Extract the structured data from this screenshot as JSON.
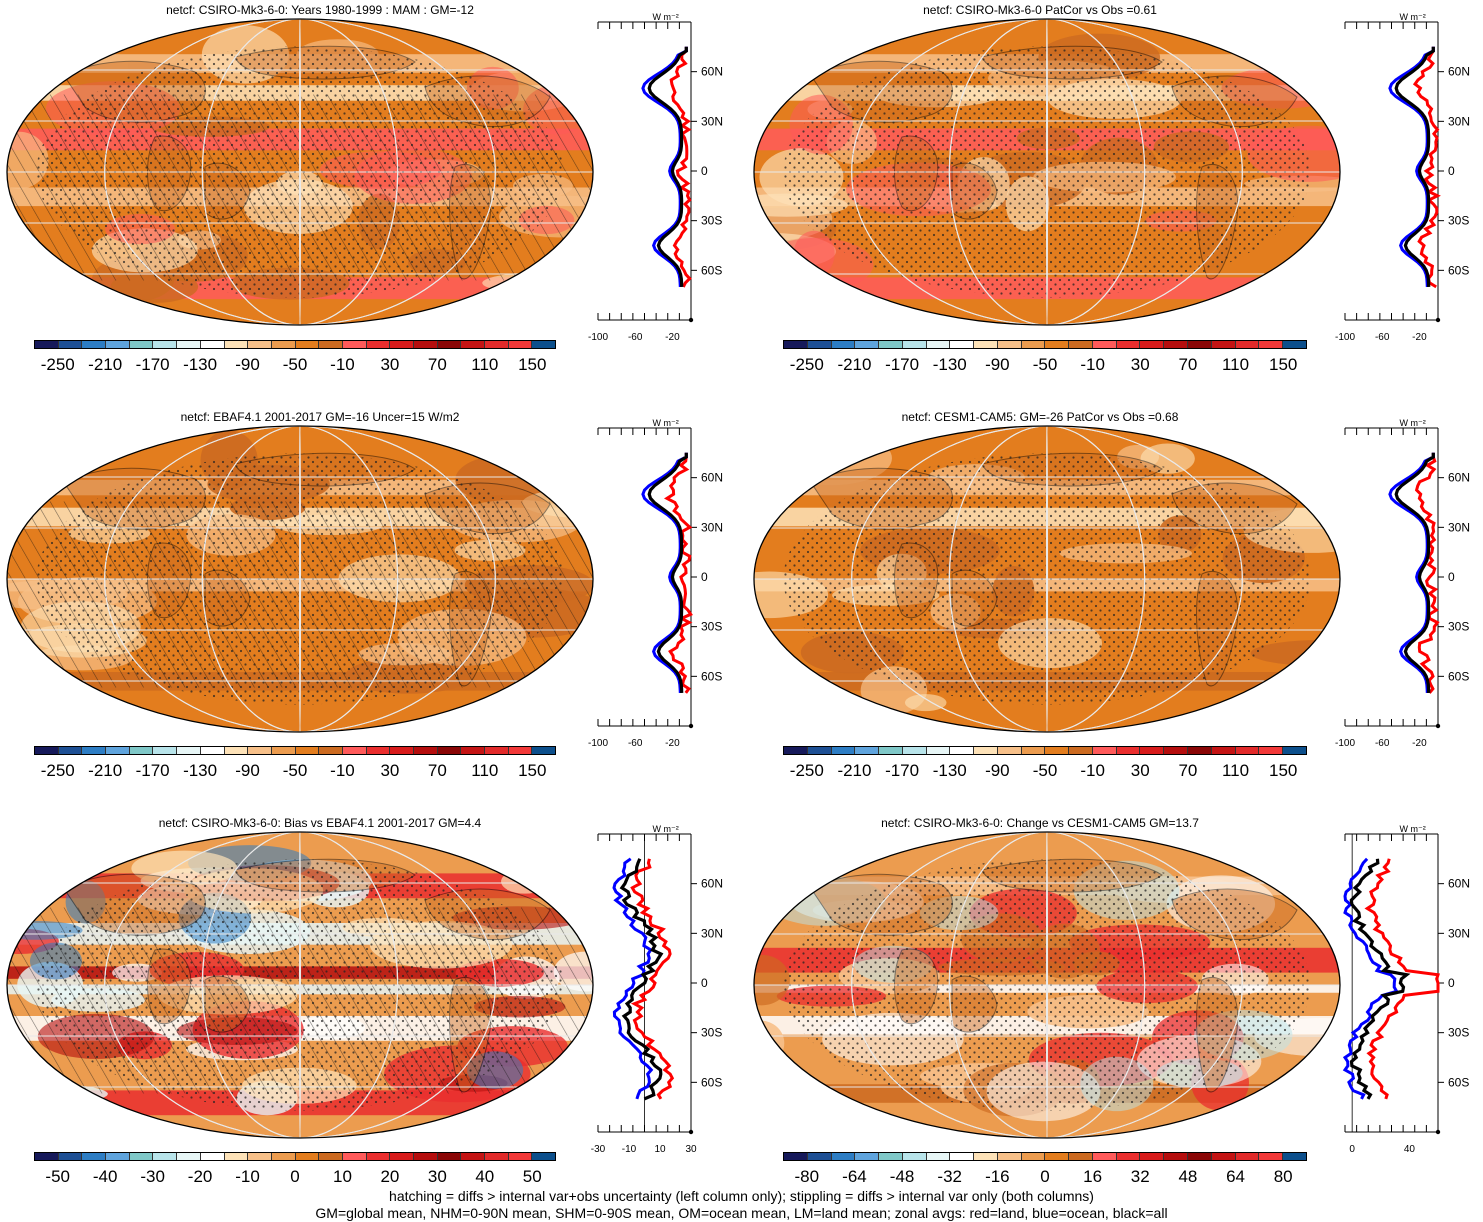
{
  "panels": [
    {
      "id": "p1",
      "title": "netcf: CSIRO-Mk3-6-0: Years 1980-1999 : MAM : GM=-12",
      "map_style": "model",
      "hatching": true,
      "colorbar": {
        "labels": [
          "-250",
          "-210",
          "-170",
          "-130",
          "-90",
          "-50",
          "-10",
          "30",
          "70",
          "110",
          "150"
        ]
      },
      "zonal": {
        "xticks": [
          "-100",
          "-60",
          "-20"
        ],
        "unit": "W m⁻²",
        "ylabels": [
          "60N",
          "30N",
          "0",
          "30S",
          "60S"
        ]
      }
    },
    {
      "id": "p2",
      "title": "netcf: CSIRO-Mk3-6-0 PatCor vs Obs =0.61",
      "map_style": "model",
      "hatching": false,
      "colorbar": {
        "labels": [
          "-250",
          "-210",
          "-170",
          "-130",
          "-90",
          "-50",
          "-10",
          "30",
          "70",
          "110",
          "150"
        ]
      },
      "zonal": {
        "xticks": [
          "-100",
          "-60",
          "-20"
        ],
        "unit": "W m⁻²",
        "ylabels": [
          "60N",
          "30N",
          "0",
          "30S",
          "60S"
        ]
      }
    },
    {
      "id": "p3",
      "title": "netcf: EBAF4.1 2001-2017 GM=-16 Uncer=15 W/m2",
      "map_style": "obs",
      "hatching": true,
      "colorbar": {
        "labels": [
          "-250",
          "-210",
          "-170",
          "-130",
          "-90",
          "-50",
          "-10",
          "30",
          "70",
          "110",
          "150"
        ]
      },
      "zonal": {
        "xticks": [
          "-100",
          "-60",
          "-20"
        ],
        "unit": "W m⁻²",
        "ylabels": [
          "60N",
          "30N",
          "0",
          "30S",
          "60S"
        ]
      }
    },
    {
      "id": "p4",
      "title": "netcf: CESM1-CAM5: GM=-26 PatCor vs Obs =0.68",
      "map_style": "obs",
      "hatching": false,
      "colorbar": {
        "labels": [
          "-250",
          "-210",
          "-170",
          "-130",
          "-90",
          "-50",
          "-10",
          "30",
          "70",
          "110",
          "150"
        ]
      },
      "zonal": {
        "xticks": [
          "-100",
          "-60",
          "-20"
        ],
        "unit": "W m⁻²",
        "ylabels": [
          "60N",
          "30N",
          "0",
          "30S",
          "60S"
        ]
      }
    },
    {
      "id": "p5",
      "title": "netcf: CSIRO-Mk3-6-0: Bias vs EBAF4.1 2001-2017 GM=4.4",
      "map_style": "bias",
      "hatching": true,
      "colorbar": {
        "labels": [
          "-50",
          "-40",
          "-30",
          "-20",
          "-10",
          "0",
          "10",
          "20",
          "30",
          "40",
          "50"
        ]
      },
      "zonal": {
        "xticks": [
          "-30",
          "-10",
          "10",
          "30"
        ],
        "unit": "W m⁻²",
        "ylabels": [
          "60N",
          "30N",
          "0",
          "30S",
          "60S"
        ]
      }
    },
    {
      "id": "p6",
      "title": "netcf: CSIRO-Mk3-6-0: Change vs CESM1-CAM5 GM=13.7",
      "map_style": "change",
      "hatching": false,
      "colorbar": {
        "labels": [
          "-80",
          "-64",
          "-48",
          "-32",
          "-16",
          "0",
          "16",
          "32",
          "48",
          "64",
          "80"
        ]
      },
      "zonal": {
        "xticks": [
          "0",
          "40"
        ],
        "unit": "W m⁻²",
        "ylabels": [
          "60N",
          "30N",
          "0",
          "30S",
          "60S"
        ]
      }
    }
  ],
  "colormap": [
    "#16195a",
    "#1d4f94",
    "#2d7dc4",
    "#5fa4dd",
    "#7fc8c8",
    "#b8e4ea",
    "#e7f6f6",
    "#ffffff",
    "#fde2b8",
    "#f7c089",
    "#ec9c4f",
    "#e37d1e",
    "#cc6a20",
    "#ff5a5a",
    "#ea2e2e",
    "#d81b1b",
    "#b50e0e",
    "#8a0606",
    "#c41414",
    "#e22a2a",
    "#f23838",
    "#0c4f8c"
  ],
  "zonal_series_colors": {
    "land": "#ff0000",
    "ocean": "#0000ff",
    "all": "#000000"
  },
  "footer": {
    "line1": "hatching = diffs > internal var+obs uncertainty (left column only); stippling = diffs > internal var only (both columns)",
    "line2": "GM=global mean, NHM=0-90N mean, SHM=0-90S mean, OM=ocean mean, LM=land mean; zonal avgs: red=land, blue=ocean, black=all"
  }
}
